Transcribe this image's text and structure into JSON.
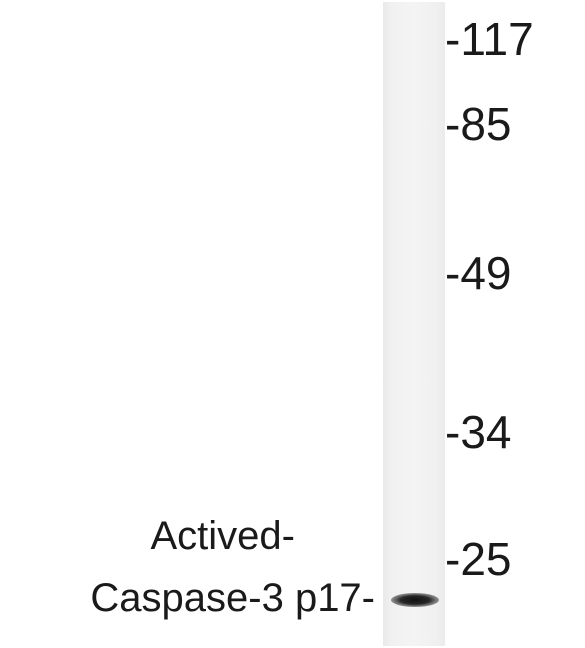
{
  "blot": {
    "markers": [
      {
        "label": "-117"
      },
      {
        "label": "-85"
      },
      {
        "label": "-49"
      },
      {
        "label": "-34"
      },
      {
        "label": "-25"
      }
    ],
    "band_label": {
      "line1": "Actived-",
      "line2": "Caspase-3 p17-"
    }
  }
}
